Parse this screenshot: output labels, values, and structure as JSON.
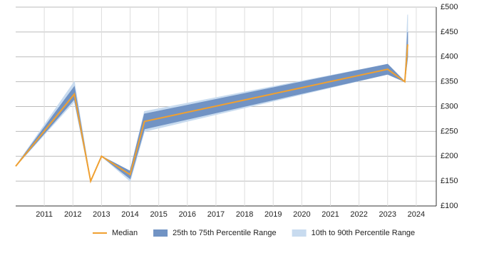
{
  "chart_data": {
    "type": "percentile-band",
    "x": [
      2010.0,
      2012.05,
      2012.62,
      2013.0,
      2014.0,
      2014.5,
      2023.0,
      2023.6,
      2023.7
    ],
    "series": [
      {
        "name": "Median",
        "color": "#f0a030",
        "values": [
          180,
          325,
          150,
          200,
          163,
          270,
          375,
          350,
          425
        ]
      },
      {
        "name": "25th to 75th Percentile Range",
        "color": "#7193c4",
        "lower": [
          180,
          315,
          150,
          200,
          155,
          255,
          365,
          350,
          400
        ],
        "upper": [
          180,
          340,
          150,
          200,
          170,
          285,
          385,
          350,
          450
        ]
      },
      {
        "name": "10th to 90th Percentile Range",
        "color": "#c8dbef",
        "lower": [
          180,
          310,
          150,
          200,
          150,
          250,
          365,
          350,
          400
        ],
        "upper": [
          180,
          350,
          150,
          200,
          170,
          290,
          385,
          350,
          485
        ]
      }
    ],
    "xlim": [
      2010,
      2024.7
    ],
    "xticks": [
      2011,
      2012,
      2013,
      2014,
      2015,
      2016,
      2017,
      2018,
      2019,
      2020,
      2021,
      2022,
      2023,
      2024
    ],
    "ylim": [
      100,
      500
    ],
    "yticks": [
      {
        "value": 100,
        "label": "£100"
      },
      {
        "value": 150,
        "label": "£150"
      },
      {
        "value": 200,
        "label": "£200"
      },
      {
        "value": 250,
        "label": "£250"
      },
      {
        "value": 300,
        "label": "£300"
      },
      {
        "value": 350,
        "label": "£350"
      },
      {
        "value": 400,
        "label": "£400"
      },
      {
        "value": 450,
        "label": "£450"
      },
      {
        "value": 500,
        "label": "£500"
      }
    ],
    "grid": true
  }
}
